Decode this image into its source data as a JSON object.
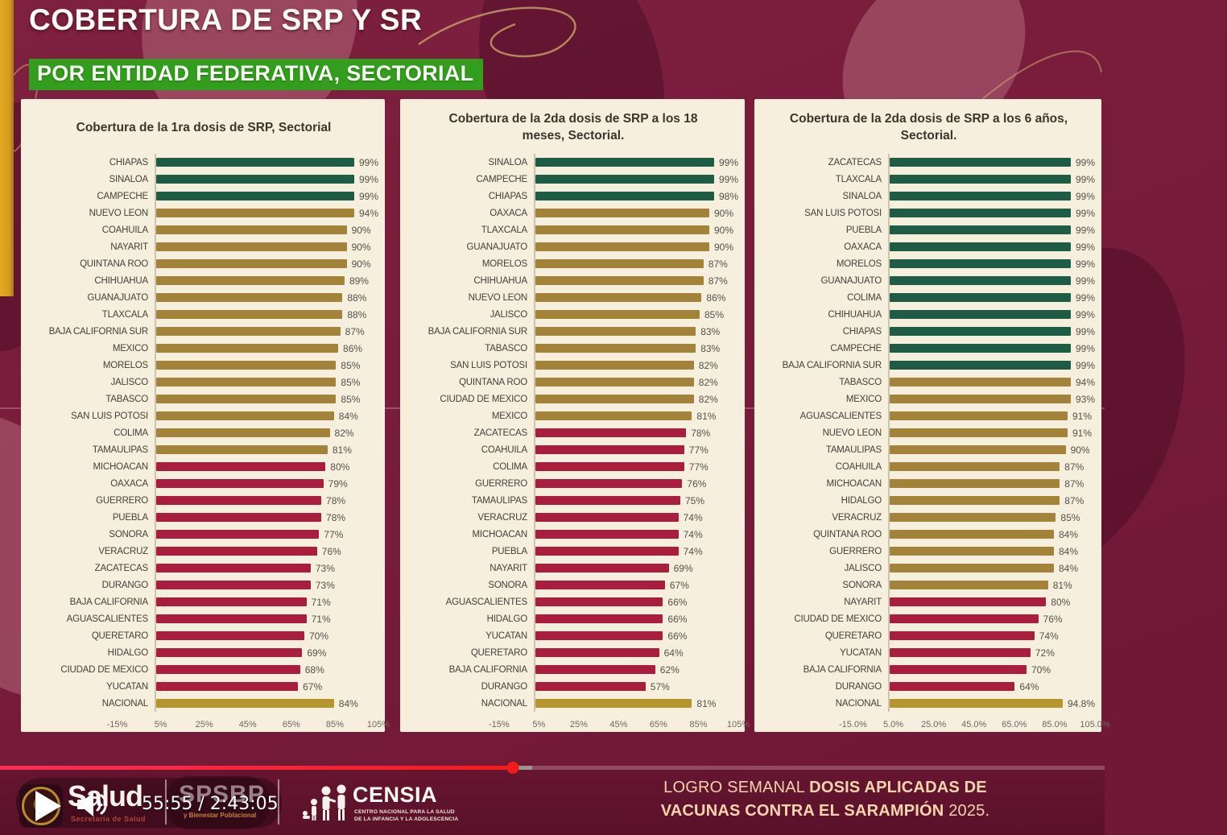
{
  "header": {
    "title_line1": "COBERTURA DE SRP Y SR",
    "title_line2": "POR ENTIDAD FEDERATIVA, SECTORIAL"
  },
  "chart_data": [
    {
      "type": "bar",
      "orientation": "horizontal",
      "title": "Cobertura de la 1ra dosis de SRP, Sectorial",
      "xlim": [
        -15,
        105
      ],
      "tick_values": [
        -15,
        5,
        25,
        45,
        65,
        85,
        105
      ],
      "tick_labels": [
        "-15%",
        "5%",
        "25%",
        "45%",
        "65%",
        "85%",
        "105%"
      ],
      "categories": [
        "CHIAPAS",
        "SINALOA",
        "CAMPECHE",
        "NUEVO LEON",
        "COAHUILA",
        "NAYARIT",
        "QUINTANA ROO",
        "CHIHUAHUA",
        "GUANAJUATO",
        "TLAXCALA",
        "BAJA CALIFORNIA SUR",
        "MEXICO",
        "MORELOS",
        "JALISCO",
        "TABASCO",
        "SAN LUIS POTOSI",
        "COLIMA",
        "TAMAULIPAS",
        "MICHOACAN",
        "OAXACA",
        "GUERRERO",
        "PUEBLA",
        "SONORA",
        "VERACRUZ",
        "ZACATECAS",
        "DURANGO",
        "BAJA CALIFORNIA",
        "AGUASCALIENTES",
        "QUERETARO",
        "HIDALGO",
        "CIUDAD DE MEXICO",
        "YUCATAN",
        "NACIONAL"
      ],
      "values": [
        99,
        99,
        99,
        94,
        90,
        90,
        90,
        89,
        88,
        88,
        87,
        86,
        85,
        85,
        85,
        84,
        82,
        81,
        80,
        79,
        78,
        78,
        77,
        76,
        73,
        73,
        71,
        71,
        70,
        69,
        68,
        67,
        84
      ],
      "value_labels": [
        "99%",
        "99%",
        "99%",
        "94%",
        "90%",
        "90%",
        "90%",
        "89%",
        "88%",
        "88%",
        "87%",
        "86%",
        "85%",
        "85%",
        "85%",
        "84%",
        "82%",
        "81%",
        "80%",
        "79%",
        "78%",
        "78%",
        "77%",
        "76%",
        "73%",
        "73%",
        "71%",
        "71%",
        "70%",
        "69%",
        "68%",
        "67%",
        "84%"
      ]
    },
    {
      "type": "bar",
      "orientation": "horizontal",
      "title": "Cobertura de la 2da dosis de SRP a los 18 meses, Sectorial.",
      "xlim": [
        -15,
        105
      ],
      "tick_values": [
        -15,
        5,
        25,
        45,
        65,
        85,
        105
      ],
      "tick_labels": [
        "-15%",
        "5%",
        "25%",
        "45%",
        "65%",
        "85%",
        "105%"
      ],
      "categories": [
        "SINALOA",
        "CAMPECHE",
        "CHIAPAS",
        "OAXACA",
        "TLAXCALA",
        "GUANAJUATO",
        "MORELOS",
        "CHIHUAHUA",
        "NUEVO LEON",
        "JALISCO",
        "BAJA CALIFORNIA SUR",
        "TABASCO",
        "SAN LUIS POTOSI",
        "QUINTANA ROO",
        "CIUDAD DE MEXICO",
        "MEXICO",
        "ZACATECAS",
        "COAHUILA",
        "COLIMA",
        "GUERRERO",
        "TAMAULIPAS",
        "VERACRUZ",
        "MICHOACAN",
        "PUEBLA",
        "NAYARIT",
        "SONORA",
        "AGUASCALIENTES",
        "HIDALGO",
        "YUCATAN",
        "QUERETARO",
        "BAJA CALIFORNIA",
        "DURANGO",
        "NACIONAL"
      ],
      "values": [
        99,
        99,
        98,
        90,
        90,
        90,
        87,
        87,
        86,
        85,
        83,
        83,
        82,
        82,
        82,
        81,
        78,
        77,
        77,
        76,
        75,
        74,
        74,
        74,
        69,
        67,
        66,
        66,
        66,
        64,
        62,
        57,
        81
      ],
      "value_labels": [
        "99%",
        "99%",
        "98%",
        "90%",
        "90%",
        "90%",
        "87%",
        "87%",
        "86%",
        "85%",
        "83%",
        "83%",
        "82%",
        "82%",
        "82%",
        "81%",
        "78%",
        "77%",
        "77%",
        "76%",
        "75%",
        "74%",
        "74%",
        "74%",
        "69%",
        "67%",
        "66%",
        "66%",
        "66%",
        "64%",
        "62%",
        "57%",
        "81%"
      ]
    },
    {
      "type": "bar",
      "orientation": "horizontal",
      "title": "Cobertura de la 2da dosis de SRP a los 6 años, Sectorial.",
      "xlim": [
        -15,
        105
      ],
      "tick_values": [
        -15,
        5,
        25,
        45,
        65,
        85,
        105
      ],
      "tick_labels": [
        "-15.0%",
        "5.0%",
        "25.0%",
        "45.0%",
        "65.0%",
        "85.0%",
        "105.0%"
      ],
      "categories": [
        "ZACATECAS",
        "TLAXCALA",
        "SINALOA",
        "SAN LUIS POTOSI",
        "PUEBLA",
        "OAXACA",
        "MORELOS",
        "GUANAJUATO",
        "COLIMA",
        "CHIHUAHUA",
        "CHIAPAS",
        "CAMPECHE",
        "BAJA CALIFORNIA SUR",
        "TABASCO",
        "MEXICO",
        "AGUASCALIENTES",
        "NUEVO LEON",
        "TAMAULIPAS",
        "COAHUILA",
        "MICHOACAN",
        "HIDALGO",
        "VERACRUZ",
        "QUINTANA ROO",
        "GUERRERO",
        "JALISCO",
        "SONORA",
        "NAYARIT",
        "CIUDAD DE MEXICO",
        "QUERETARO",
        "YUCATAN",
        "BAJA CALIFORNIA",
        "DURANGO",
        "NACIONAL"
      ],
      "values": [
        99,
        99,
        99,
        99,
        99,
        99,
        99,
        99,
        99,
        99,
        99,
        99,
        99,
        94,
        93,
        91,
        91,
        90,
        87,
        87,
        87,
        85,
        84,
        84,
        84,
        81,
        80,
        76,
        74,
        72,
        70,
        64,
        94.8
      ],
      "value_labels": [
        "99%",
        "99%",
        "99%",
        "99%",
        "99%",
        "99%",
        "99%",
        "99%",
        "99%",
        "99%",
        "99%",
        "99%",
        "99%",
        "94%",
        "93%",
        "91%",
        "91%",
        "90%",
        "87%",
        "87%",
        "87%",
        "85%",
        "84%",
        "84%",
        "84%",
        "81%",
        "80%",
        "76%",
        "74%",
        "72%",
        "70%",
        "64%",
        "94.8%"
      ]
    }
  ],
  "colors": {
    "green_bar": "#1e5c45",
    "gold_bar": "#a3833a",
    "red_bar": "#a91e3f",
    "national_bar": "#b6952d",
    "panel_bg": "#f6efde",
    "header_green": "#339e1d",
    "background_maroon": "#791c3c",
    "progress_red": "#f61b1b",
    "green_threshold": 98,
    "red_threshold": 80
  },
  "player": {
    "time_display": "55:55 / 2:43:05",
    "current_time": "55:55",
    "duration": "2:43:05",
    "progress_percent": 46.4,
    "buffered_percent": 48.2
  },
  "footer": {
    "salud_wordmark": "Salud",
    "salud_subtitle": "Secretaría de Salud",
    "spsbp_wordmark": "SPSBP",
    "spsbp_subtitle": "y Bienestar Poblacional",
    "censia_wordmark": "CENSIA",
    "censia_subtitle_line1": "CENTRO NACIONAL PARA LA SALUD",
    "censia_subtitle_line2": "DE LA INFANCIA Y LA ADOLESCENCIA",
    "weekly_prefix": "LOGRO SEMANAL",
    "weekly_bold": "DOSIS APLICADAS DE VACUNAS CONTRA EL SARAMPIÓN",
    "weekly_year": "2025."
  }
}
